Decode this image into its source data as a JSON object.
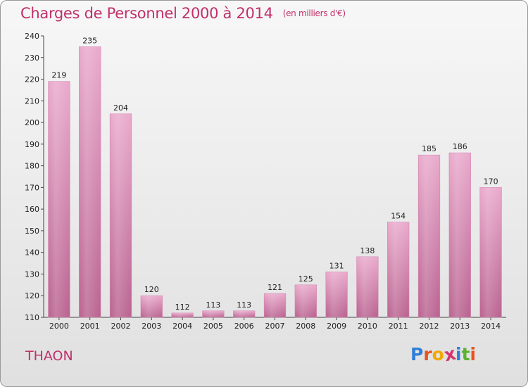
{
  "header": {
    "title": "Charges de Personnel 2000 à 2014",
    "subtitle": "(en milliers d'€)"
  },
  "place": "THAON",
  "logo": {
    "text": "Proxiti",
    "colors": [
      "#2f7fd6",
      "#e8521f",
      "#f0a800",
      "#d6336c",
      "#2f7fd6",
      "#5cb030",
      "#e8521f"
    ]
  },
  "colors": {
    "bar_top": "#e9a9cc",
    "bar_bottom": "#b9628f",
    "accent": "#c0306a"
  },
  "chart_data": {
    "type": "bar",
    "title": "Charges de Personnel 2000 à 2014",
    "subtitle": "(en milliers d'€)",
    "categories": [
      "2000",
      "2001",
      "2002",
      "2003",
      "2004",
      "2005",
      "2006",
      "2007",
      "2008",
      "2009",
      "2010",
      "2011",
      "2012",
      "2013",
      "2014"
    ],
    "values": [
      219,
      235,
      204,
      120,
      112,
      113,
      113,
      121,
      125,
      131,
      138,
      154,
      185,
      186,
      170
    ],
    "ylim": [
      110,
      240
    ],
    "yticks": [
      110,
      120,
      130,
      140,
      150,
      160,
      170,
      180,
      190,
      200,
      210,
      220,
      230,
      240
    ],
    "grid": false,
    "legend": "none"
  }
}
